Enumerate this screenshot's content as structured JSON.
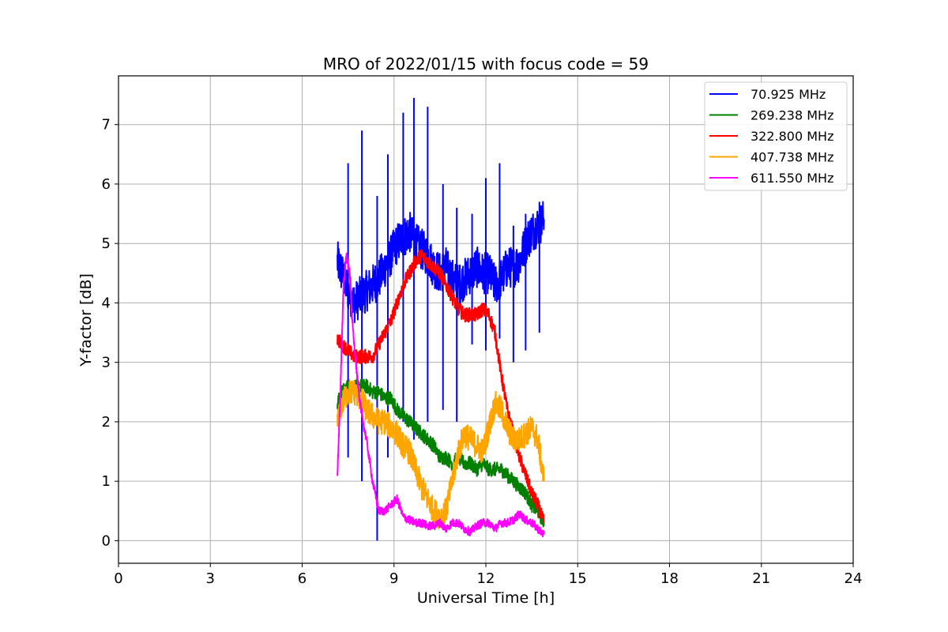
{
  "chart_data": {
    "type": "line",
    "title": "MRO of 2022/01/15 with focus code = 59",
    "xlabel": "Universal Time [h]",
    "ylabel": "Y-factor [dB]",
    "xlim": [
      0,
      24
    ],
    "ylim": [
      -0.38,
      7.82
    ],
    "xticks": [
      0,
      3,
      6,
      9,
      12,
      15,
      18,
      21,
      24
    ],
    "yticks": [
      0,
      1,
      2,
      3,
      4,
      5,
      6,
      7
    ],
    "grid": true,
    "legend_position": "top-right",
    "series": [
      {
        "name": "  70.925 MHz",
        "color": "#0000ff",
        "x": [
          7.15,
          7.3,
          7.5,
          7.7,
          7.9,
          8.1,
          8.3,
          8.5,
          8.7,
          8.9,
          9.1,
          9.3,
          9.5,
          9.7,
          9.9,
          10.1,
          10.3,
          10.5,
          10.7,
          10.9,
          11.1,
          11.3,
          11.5,
          11.7,
          11.9,
          12.1,
          12.3,
          12.5,
          12.7,
          12.9,
          13.1,
          13.3,
          13.5,
          13.7,
          13.9
        ],
        "y": [
          4.7,
          4.5,
          4.2,
          4.0,
          4.1,
          4.2,
          4.3,
          4.4,
          4.6,
          4.8,
          5.0,
          5.1,
          5.2,
          5.0,
          4.9,
          4.8,
          4.6,
          4.5,
          4.6,
          4.4,
          4.3,
          4.4,
          4.5,
          4.6,
          4.5,
          4.5,
          4.3,
          4.4,
          4.6,
          4.6,
          4.7,
          5.0,
          5.2,
          5.3,
          5.4
        ],
        "spikes": [
          {
            "x": 7.5,
            "peak": 6.35,
            "trough": 1.4
          },
          {
            "x": 7.95,
            "peak": 6.9,
            "trough": 1.0
          },
          {
            "x": 8.45,
            "peak": 5.8,
            "trough": 0.0
          },
          {
            "x": 8.8,
            "peak": 6.5,
            "trough": 1.4
          },
          {
            "x": 9.3,
            "peak": 7.2,
            "trough": 2.0
          },
          {
            "x": 9.65,
            "peak": 7.45,
            "trough": 1.7
          },
          {
            "x": 10.1,
            "peak": 7.3,
            "trough": 2.0
          },
          {
            "x": 10.6,
            "peak": 6.0,
            "trough": 2.2
          },
          {
            "x": 11.05,
            "peak": 5.6,
            "trough": 2.0
          },
          {
            "x": 11.55,
            "peak": 5.5,
            "trough": 3.3
          },
          {
            "x": 12.0,
            "peak": 6.1,
            "trough": 3.2
          },
          {
            "x": 12.45,
            "peak": 6.35,
            "trough": 3.4
          },
          {
            "x": 12.9,
            "peak": 5.3,
            "trough": 3.0
          },
          {
            "x": 13.3,
            "peak": 5.5,
            "trough": 3.2
          },
          {
            "x": 13.75,
            "peak": 5.7,
            "trough": 3.5
          }
        ]
      },
      {
        "name": "269.238 MHz",
        "color": "#008000",
        "x": [
          7.15,
          7.3,
          7.5,
          7.7,
          7.9,
          8.1,
          8.3,
          8.5,
          8.7,
          8.9,
          9.1,
          9.3,
          9.5,
          9.7,
          9.9,
          10.1,
          10.3,
          10.5,
          10.7,
          10.9,
          11.1,
          11.3,
          11.5,
          11.7,
          11.9,
          12.1,
          12.3,
          12.5,
          12.7,
          12.9,
          13.1,
          13.3,
          13.5,
          13.7,
          13.9
        ],
        "y": [
          2.3,
          2.5,
          2.6,
          2.6,
          2.6,
          2.6,
          2.5,
          2.5,
          2.4,
          2.4,
          2.2,
          2.1,
          2.0,
          1.9,
          1.8,
          1.7,
          1.6,
          1.4,
          1.4,
          1.3,
          1.4,
          1.3,
          1.3,
          1.2,
          1.3,
          1.2,
          1.2,
          1.2,
          1.1,
          1.0,
          0.9,
          0.8,
          0.6,
          0.5,
          0.3
        ]
      },
      {
        "name": "322.800 MHz",
        "color": "#ff0000",
        "x": [
          7.15,
          7.3,
          7.5,
          7.7,
          7.9,
          8.1,
          8.3,
          8.5,
          8.7,
          8.9,
          9.1,
          9.3,
          9.5,
          9.7,
          9.9,
          10.1,
          10.3,
          10.5,
          10.7,
          10.9,
          11.1,
          11.3,
          11.5,
          11.7,
          11.9,
          12.1,
          12.3,
          12.5,
          12.7,
          12.9,
          13.1,
          13.3,
          13.5,
          13.7,
          13.9
        ],
        "y": [
          3.4,
          3.3,
          3.2,
          3.1,
          3.1,
          3.1,
          3.1,
          3.3,
          3.5,
          3.7,
          4.0,
          4.3,
          4.5,
          4.7,
          4.8,
          4.7,
          4.6,
          4.5,
          4.3,
          4.1,
          3.9,
          3.8,
          3.8,
          3.8,
          3.9,
          3.8,
          3.5,
          2.8,
          2.2,
          1.8,
          1.4,
          1.1,
          0.8,
          0.6,
          0.3
        ]
      },
      {
        "name": "407.738 MHz",
        "color": "#ffa500",
        "x": [
          7.15,
          7.3,
          7.5,
          7.7,
          7.9,
          8.1,
          8.3,
          8.5,
          8.7,
          8.9,
          9.1,
          9.3,
          9.5,
          9.7,
          9.9,
          10.1,
          10.3,
          10.5,
          10.7,
          10.9,
          11.1,
          11.3,
          11.5,
          11.7,
          11.9,
          12.1,
          12.3,
          12.5,
          12.7,
          12.9,
          13.1,
          13.3,
          13.5,
          13.7,
          13.9
        ],
        "y": [
          2.0,
          2.3,
          2.5,
          2.5,
          2.4,
          2.2,
          2.1,
          2.0,
          2.0,
          1.9,
          1.8,
          1.6,
          1.5,
          1.2,
          0.9,
          0.7,
          0.5,
          0.4,
          0.5,
          1.0,
          1.5,
          1.8,
          1.7,
          1.6,
          1.5,
          1.9,
          2.3,
          2.2,
          1.9,
          1.7,
          1.7,
          1.8,
          1.9,
          1.7,
          1.0
        ]
      },
      {
        "name": "611.550 MHz",
        "color": "#ff00ff",
        "x": [
          7.15,
          7.25,
          7.35,
          7.45,
          7.55,
          7.65,
          7.75,
          7.85,
          7.95,
          8.1,
          8.3,
          8.5,
          8.7,
          8.9,
          9.1,
          9.3,
          9.5,
          9.7,
          9.9,
          10.1,
          10.3,
          10.5,
          10.7,
          10.9,
          11.1,
          11.3,
          11.5,
          11.7,
          11.9,
          12.1,
          12.3,
          12.5,
          12.7,
          12.9,
          13.1,
          13.3,
          13.5,
          13.7,
          13.9
        ],
        "y": [
          1.1,
          2.5,
          4.3,
          4.8,
          4.5,
          3.6,
          3.0,
          2.5,
          2.1,
          1.7,
          1.0,
          0.5,
          0.5,
          0.6,
          0.7,
          0.4,
          0.35,
          0.3,
          0.3,
          0.25,
          0.25,
          0.3,
          0.2,
          0.3,
          0.3,
          0.2,
          0.15,
          0.25,
          0.3,
          0.3,
          0.2,
          0.3,
          0.3,
          0.35,
          0.45,
          0.35,
          0.3,
          0.2,
          0.1
        ]
      }
    ]
  }
}
